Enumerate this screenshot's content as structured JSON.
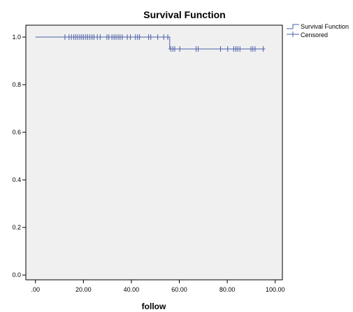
{
  "chart_data": {
    "type": "line",
    "title": "Survival Function",
    "xlabel": "follow",
    "ylabel": "",
    "xlim": [
      -4,
      103
    ],
    "ylim": [
      -0.02,
      1.05
    ],
    "grid": false,
    "legend_position": "top-right",
    "background": "#f0f0f0",
    "line_color": "#4a5fa8",
    "x_tick_labels": [
      ".00",
      "20.00",
      "40.00",
      "60.00",
      "80.00",
      "100.00"
    ],
    "x_tick_values": [
      0,
      20,
      40,
      60,
      80,
      100
    ],
    "y_tick_labels": [
      "0.0",
      "0.2",
      "0.4",
      "0.6",
      "0.8",
      "1.0"
    ],
    "y_tick_values": [
      0,
      0.2,
      0.4,
      0.6,
      0.8,
      1.0
    ],
    "series": [
      {
        "name": "Survival Function",
        "kind": "step",
        "x": [
          0,
          56,
          95
        ],
        "y": [
          1.0,
          0.95,
          0.95
        ]
      },
      {
        "name": "Censored",
        "kind": "marker-plus",
        "points": [
          {
            "x": 12.3,
            "y": 1.0
          },
          {
            "x": 14.0,
            "y": 1.0
          },
          {
            "x": 15.0,
            "y": 1.0
          },
          {
            "x": 16.0,
            "y": 1.0
          },
          {
            "x": 16.8,
            "y": 1.0
          },
          {
            "x": 17.6,
            "y": 1.0
          },
          {
            "x": 18.5,
            "y": 1.0
          },
          {
            "x": 19.3,
            "y": 1.0
          },
          {
            "x": 20.1,
            "y": 1.0
          },
          {
            "x": 21.0,
            "y": 1.0
          },
          {
            "x": 21.8,
            "y": 1.0
          },
          {
            "x": 22.7,
            "y": 1.0
          },
          {
            "x": 23.6,
            "y": 1.0
          },
          {
            "x": 24.4,
            "y": 1.0
          },
          {
            "x": 25.8,
            "y": 1.0
          },
          {
            "x": 27.0,
            "y": 1.0
          },
          {
            "x": 29.8,
            "y": 1.0
          },
          {
            "x": 30.6,
            "y": 1.0
          },
          {
            "x": 31.9,
            "y": 1.0
          },
          {
            "x": 32.8,
            "y": 1.0
          },
          {
            "x": 33.6,
            "y": 1.0
          },
          {
            "x": 34.5,
            "y": 1.0
          },
          {
            "x": 35.3,
            "y": 1.0
          },
          {
            "x": 36.2,
            "y": 1.0
          },
          {
            "x": 38.3,
            "y": 1.0
          },
          {
            "x": 39.6,
            "y": 1.0
          },
          {
            "x": 41.7,
            "y": 1.0
          },
          {
            "x": 42.6,
            "y": 1.0
          },
          {
            "x": 43.4,
            "y": 1.0
          },
          {
            "x": 47.2,
            "y": 1.0
          },
          {
            "x": 48.1,
            "y": 1.0
          },
          {
            "x": 51.0,
            "y": 1.0
          },
          {
            "x": 53.5,
            "y": 1.0
          },
          {
            "x": 55.2,
            "y": 1.0
          },
          {
            "x": 56.4,
            "y": 0.95
          },
          {
            "x": 57.3,
            "y": 0.95
          },
          {
            "x": 58.1,
            "y": 0.95
          },
          {
            "x": 60.2,
            "y": 0.95
          },
          {
            "x": 67.0,
            "y": 0.95
          },
          {
            "x": 67.9,
            "y": 0.95
          },
          {
            "x": 77.2,
            "y": 0.95
          },
          {
            "x": 80.2,
            "y": 0.95
          },
          {
            "x": 82.7,
            "y": 0.95
          },
          {
            "x": 83.6,
            "y": 0.95
          },
          {
            "x": 84.4,
            "y": 0.95
          },
          {
            "x": 85.3,
            "y": 0.95
          },
          {
            "x": 89.9,
            "y": 0.95
          },
          {
            "x": 90.7,
            "y": 0.95
          },
          {
            "x": 91.6,
            "y": 0.95
          },
          {
            "x": 95.0,
            "y": 0.95
          }
        ]
      }
    ]
  }
}
